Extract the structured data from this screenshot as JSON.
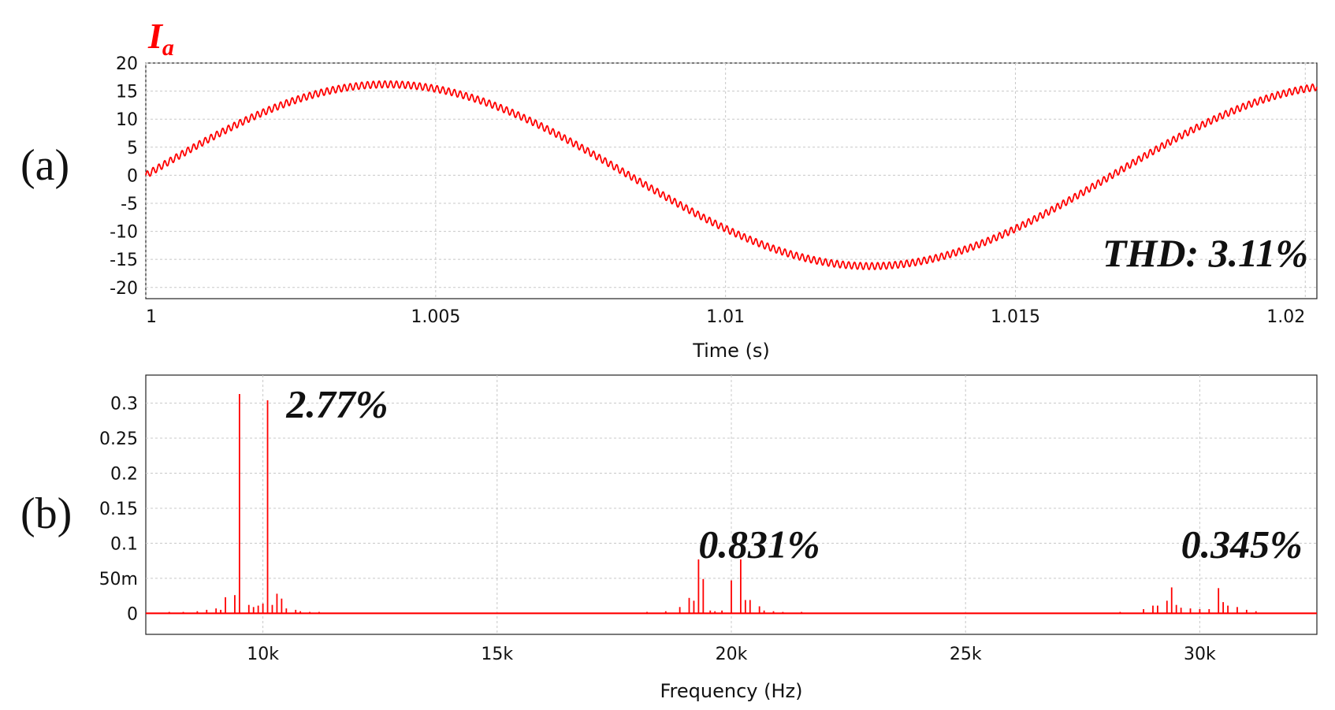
{
  "chart_data": [
    {
      "type": "line",
      "panel_label": "(a)",
      "signal_label": "I",
      "signal_subscript": "a",
      "xlabel": "Time (s)",
      "ylabel": "",
      "xlim": [
        1.0,
        1.0202
      ],
      "ylim": [
        -22,
        20
      ],
      "x_ticks": [
        1,
        1.005,
        1.01,
        1.015,
        1.02
      ],
      "x_tick_labels": [
        "1",
        "1.005",
        "1.01",
        "1.015",
        "1.02"
      ],
      "y_ticks": [
        20,
        15,
        10,
        5,
        0,
        -5,
        -10,
        -15,
        -20
      ],
      "y_tick_labels": [
        "20",
        "15",
        "10",
        "5",
        "0",
        "-5",
        "-10",
        "-15",
        "-20"
      ],
      "grid": true,
      "annotation": "THD: 3.11%",
      "series": [
        {
          "color": "#ff0000",
          "fundamental_hz": 60,
          "amplitude": 16.2,
          "phase_start_s": 1.0,
          "ripple_amplitude": 0.6,
          "ripple_hz": 10000
        }
      ]
    },
    {
      "type": "bar",
      "panel_label": "(b)",
      "xlabel": "Frequency (Hz)",
      "ylabel": "",
      "xlim": [
        7500,
        32500
      ],
      "ylim": [
        -0.03,
        0.34
      ],
      "x_ticks": [
        10000,
        15000,
        20000,
        25000,
        30000
      ],
      "x_tick_labels": [
        "10k",
        "15k",
        "20k",
        "25k",
        "30k"
      ],
      "y_ticks": [
        0.3,
        0.25,
        0.2,
        0.15,
        0.1,
        0.05,
        0
      ],
      "y_tick_labels": [
        "0.3",
        "0.25",
        "0.2",
        "0.15",
        "0.1",
        "50m",
        "0"
      ],
      "grid": true,
      "color": "#ff0000",
      "annotations": [
        {
          "text": "2.77%",
          "x": 10500,
          "y": 0.3
        },
        {
          "text": "0.831%",
          "x": 19300,
          "y": 0.1
        },
        {
          "text": "0.345%",
          "x": 29600,
          "y": 0.1
        }
      ],
      "x": [
        8000,
        8300,
        8600,
        8800,
        9000,
        9100,
        9200,
        9400,
        9500,
        9700,
        9800,
        9900,
        10000,
        10100,
        10200,
        10300,
        10400,
        10500,
        10700,
        10800,
        11000,
        11200,
        18200,
        18600,
        18900,
        19100,
        19200,
        19300,
        19400,
        19550,
        19650,
        19800,
        20000,
        20200,
        20300,
        20400,
        20600,
        20700,
        20900,
        21100,
        21500,
        28300,
        28800,
        29000,
        29100,
        29300,
        29400,
        29500,
        29600,
        29800,
        30000,
        30200,
        30400,
        30500,
        30600,
        30800,
        31000,
        31200
      ],
      "y": [
        0.002,
        0.002,
        0.003,
        0.005,
        0.007,
        0.005,
        0.023,
        0.026,
        0.313,
        0.012,
        0.009,
        0.011,
        0.014,
        0.304,
        0.012,
        0.028,
        0.021,
        0.007,
        0.005,
        0.003,
        0.002,
        0.002,
        0.002,
        0.003,
        0.009,
        0.022,
        0.018,
        0.077,
        0.049,
        0.004,
        0.003,
        0.004,
        0.047,
        0.077,
        0.019,
        0.019,
        0.01,
        0.004,
        0.003,
        0.002,
        0.002,
        0.002,
        0.006,
        0.011,
        0.011,
        0.018,
        0.037,
        0.012,
        0.008,
        0.007,
        0.006,
        0.006,
        0.036,
        0.016,
        0.011,
        0.009,
        0.005,
        0.003
      ]
    }
  ]
}
